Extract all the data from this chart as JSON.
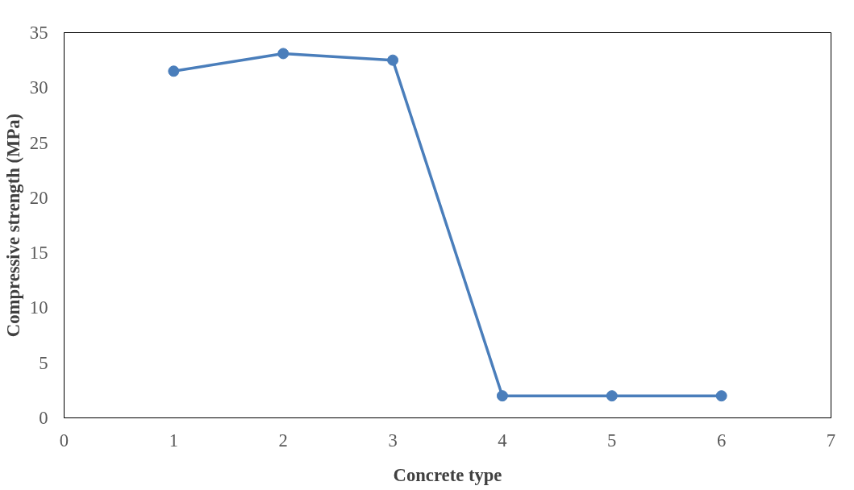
{
  "chart_data": {
    "type": "line",
    "xlabel": "Concrete type",
    "ylabel": "Compressive strength (MPa)",
    "x": [
      1,
      2,
      3,
      4,
      5,
      6
    ],
    "series": [
      {
        "color": "#4a7ebb",
        "values": [
          31.5,
          33.1,
          32.5,
          2,
          2,
          2
        ]
      }
    ],
    "xlim": [
      0,
      7
    ],
    "xticks": [
      0,
      1,
      2,
      3,
      4,
      5,
      6,
      7
    ],
    "ylim": [
      0,
      35
    ],
    "yticks": [
      0,
      5,
      10,
      15,
      20,
      25,
      30,
      35
    ],
    "grid": false,
    "marker": "circle",
    "line_style": "solid"
  }
}
